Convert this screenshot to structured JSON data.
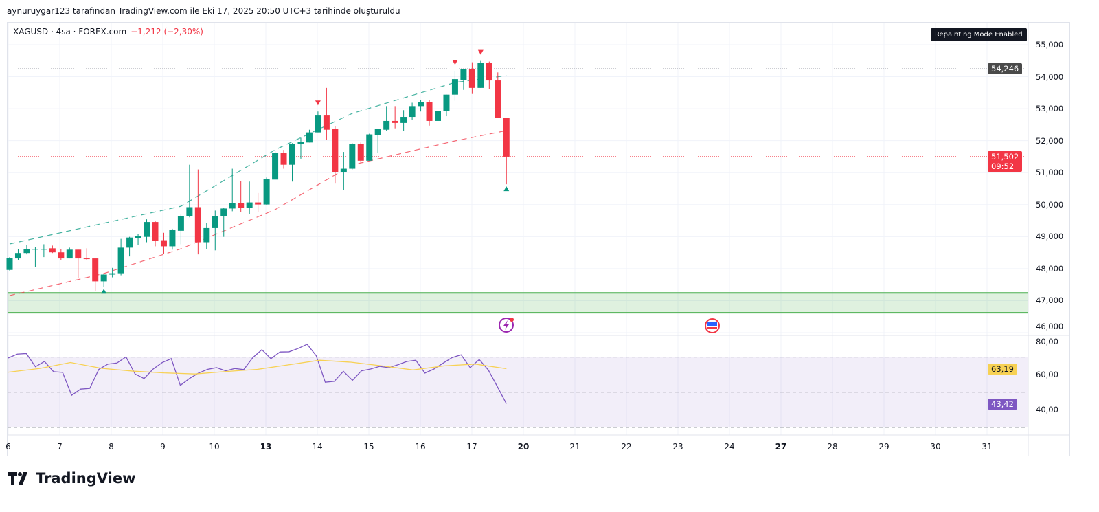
{
  "credit": "aynuruygar123 tarafından TradingView.com ile Eki 17, 2025 20:50 UTC+3 tarihinde oluşturuldu",
  "legend": {
    "symbol": "XAGUSD · 4sa · FOREX.com",
    "change": "−1,212 (−2,30%)"
  },
  "badge": "Repainting Mode Enabled",
  "logo": "TradingView",
  "colors": {
    "up": "#089981",
    "down": "#f23645",
    "rsi": "#7e57c2",
    "rsi_ma": "#f7d154",
    "zone": "#4caf50"
  },
  "chart_data": {
    "type": "candlestick",
    "symbol": "XAGUSD",
    "interval": "4h",
    "ylim": [
      46000,
      55500
    ],
    "price_ticks": [
      "55,000",
      "54,000",
      "53,000",
      "52,000",
      "51,000",
      "50,000",
      "49,000",
      "48,000",
      "47,000",
      "46,000"
    ],
    "price_tick_values": [
      55000,
      54000,
      53000,
      52000,
      51000,
      50000,
      49000,
      48000,
      47000,
      46000
    ],
    "x_ticks": [
      {
        "t": "6",
        "b": false
      },
      {
        "t": "7",
        "b": false
      },
      {
        "t": "8",
        "b": false
      },
      {
        "t": "9",
        "b": false
      },
      {
        "t": "10",
        "b": false
      },
      {
        "t": "13",
        "b": true
      },
      {
        "t": "14",
        "b": false
      },
      {
        "t": "15",
        "b": false
      },
      {
        "t": "16",
        "b": false
      },
      {
        "t": "17",
        "b": false
      },
      {
        "t": "20",
        "b": true
      },
      {
        "t": "21",
        "b": false
      },
      {
        "t": "22",
        "b": false
      },
      {
        "t": "23",
        "b": false
      },
      {
        "t": "24",
        "b": false
      },
      {
        "t": "27",
        "b": true
      },
      {
        "t": "28",
        "b": false
      },
      {
        "t": "29",
        "b": false
      },
      {
        "t": "30",
        "b": false
      },
      {
        "t": "31",
        "b": false
      }
    ],
    "ohlc": [
      [
        47961,
        48361,
        47940,
        48340
      ],
      [
        48319,
        48615,
        48256,
        48488
      ],
      [
        48488,
        48740,
        48446,
        48615
      ],
      [
        48593,
        48677,
        48045,
        48615
      ],
      [
        48593,
        48762,
        48361,
        48615
      ],
      [
        48635,
        48720,
        48488,
        48509
      ],
      [
        48509,
        48615,
        48256,
        48319
      ],
      [
        48319,
        48656,
        48319,
        48593
      ],
      [
        48593,
        48593,
        47708,
        48319
      ],
      [
        48319,
        48635,
        48256,
        48298
      ],
      [
        48319,
        48319,
        47308,
        47603
      ],
      [
        47603,
        47836,
        47434,
        47815
      ],
      [
        47815,
        48024,
        47729,
        47856
      ],
      [
        47856,
        48930,
        47793,
        48656
      ],
      [
        48656,
        48993,
        48382,
        48972
      ],
      [
        48951,
        49078,
        48740,
        49015
      ],
      [
        48993,
        49541,
        48825,
        49457
      ],
      [
        49457,
        49499,
        48698,
        48867
      ],
      [
        48888,
        49120,
        48467,
        48698
      ],
      [
        48698,
        49246,
        48593,
        49204
      ],
      [
        49183,
        49689,
        48762,
        49647
      ],
      [
        49647,
        51248,
        49605,
        49921
      ],
      [
        49921,
        51100,
        48446,
        48825
      ],
      [
        48825,
        49436,
        48615,
        49267
      ],
      [
        49267,
        49815,
        48572,
        49647
      ],
      [
        49647,
        49900,
        48993,
        49879
      ],
      [
        49879,
        51122,
        49794,
        50048
      ],
      [
        50048,
        50742,
        49773,
        49900
      ],
      [
        49900,
        50721,
        49710,
        50069
      ],
      [
        50069,
        50363,
        49773,
        50005
      ],
      [
        50005,
        50848,
        49984,
        50806
      ],
      [
        50784,
        51690,
        50784,
        51627
      ],
      [
        51627,
        51711,
        51122,
        51248
      ],
      [
        51248,
        51922,
        50721,
        51901
      ],
      [
        51901,
        52091,
        51437,
        51964
      ],
      [
        51943,
        52343,
        51943,
        52259
      ],
      [
        52259,
        52912,
        52259,
        52786
      ],
      [
        52786,
        53650,
        52027,
        52343
      ],
      [
        52364,
        52449,
        50658,
        51016
      ],
      [
        51016,
        51648,
        50468,
        51122
      ],
      [
        51122,
        51922,
        51100,
        51901
      ],
      [
        51901,
        51943,
        51311,
        51374
      ],
      [
        51374,
        52217,
        51374,
        52196
      ],
      [
        52175,
        52364,
        51606,
        52364
      ],
      [
        52343,
        53081,
        52301,
        52617
      ],
      [
        52617,
        53081,
        52386,
        52554
      ],
      [
        52554,
        52954,
        52301,
        52744
      ],
      [
        52744,
        53186,
        52660,
        53081
      ],
      [
        53081,
        53271,
        52912,
        53207
      ],
      [
        53207,
        53271,
        52470,
        52617
      ],
      [
        52617,
        53018,
        52617,
        52933
      ],
      [
        52933,
        53439,
        52765,
        53439
      ],
      [
        53439,
        54177,
        53250,
        53924
      ],
      [
        53903,
        54240,
        53587,
        54240
      ],
      [
        54240,
        54450,
        53460,
        53650
      ],
      [
        53650,
        54493,
        53650,
        54430
      ],
      [
        54430,
        54472,
        53608,
        53882
      ],
      [
        53882,
        54134,
        52702,
        52702
      ],
      [
        52702,
        52702,
        50637,
        51501
      ]
    ],
    "upper_band": [
      [
        0,
        48771
      ],
      [
        20,
        49950
      ],
      [
        31,
        51714
      ],
      [
        40,
        52852
      ],
      [
        52,
        53819
      ],
      [
        58,
        54034
      ]
    ],
    "lower_band": [
      [
        0,
        47160
      ],
      [
        11,
        47848
      ],
      [
        20,
        48620
      ],
      [
        31,
        49845
      ],
      [
        40,
        51241
      ],
      [
        52,
        51993
      ],
      [
        58,
        52316
      ]
    ],
    "signals": [
      {
        "i": 11,
        "dir": "up"
      },
      {
        "i": 36,
        "dir": "down"
      },
      {
        "i": 52,
        "dir": "down"
      },
      {
        "i": 55,
        "dir": "down"
      },
      {
        "i": 58,
        "dir": "up"
      }
    ],
    "zone": [
      46620,
      47240
    ],
    "high_line": {
      "value": 54246,
      "label": "54,246"
    },
    "last_price": {
      "value": 51502,
      "label": "51,502",
      "countdown": "09:52"
    },
    "rsi": {
      "ylim": [
        20,
        82
      ],
      "ticks": [
        "80,00",
        "60,00",
        "40,00"
      ],
      "tick_values": [
        80,
        60,
        40
      ],
      "band": [
        30,
        50,
        70
      ],
      "values": [
        69.5,
        71.7,
        72.0,
        64.5,
        67.5,
        61.7,
        61.3,
        48.3,
        51.8,
        52.2,
        63.0,
        66.0,
        66.6,
        70.1,
        60.4,
        57.8,
        63.2,
        66.9,
        69.1,
        53.9,
        57.8,
        60.9,
        63.0,
        64.0,
        62.2,
        63.5,
        62.9,
        69.7,
        74.2,
        69.1,
        72.9,
        73.0,
        74.9,
        77.3,
        70.8,
        55.7,
        56.2,
        61.9,
        56.8,
        62.2,
        63.2,
        64.7,
        64.0,
        65.6,
        67.5,
        68.2,
        60.9,
        63.2,
        66.5,
        69.7,
        71.3,
        64.0,
        68.6,
        62.7,
        53.2,
        43.5
      ],
      "ma": [
        61.4,
        63.5,
        66.9,
        63.6,
        62.0,
        61.0,
        60.4,
        61.8,
        63.0,
        65.6,
        68.2,
        67.1,
        65.0,
        62.7,
        65.0,
        66.0,
        63.4
      ],
      "rsi_label": "43,42",
      "ma_label": "63,19"
    }
  }
}
